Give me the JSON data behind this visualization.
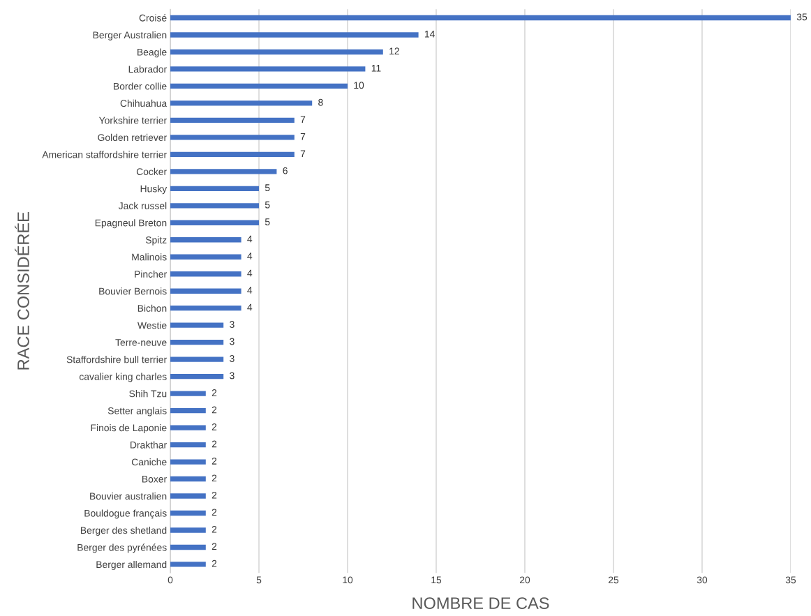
{
  "chart_data": {
    "type": "bar",
    "orientation": "horizontal",
    "xlabel": "NOMBRE DE CAS",
    "ylabel": "RACE CONSIDÉRÉE",
    "categories": [
      "Croisé",
      "Berger Australien",
      "Beagle",
      "Labrador",
      "Border collie",
      "Chihuahua",
      "Yorkshire terrier",
      "Golden retriever",
      "American staffordshire terrier",
      "Cocker",
      "Husky",
      "Jack russel",
      "Epagneul Breton",
      "Spitz",
      "Malinois",
      "Pincher",
      "Bouvier Bernois",
      "Bichon",
      "Westie",
      "Terre-neuve",
      "Staffordshire bull terrier",
      "cavalier king charles",
      "Shih Tzu",
      "Setter anglais",
      "Finois de Laponie",
      "Drakthar",
      "Caniche",
      "Boxer",
      "Bouvier australien",
      "Bouldogue français",
      "Berger des shetland",
      "Berger des pyrénées",
      "Berger allemand"
    ],
    "values": [
      35,
      14,
      12,
      11,
      10,
      8,
      7,
      7,
      7,
      6,
      5,
      5,
      5,
      4,
      4,
      4,
      4,
      4,
      3,
      3,
      3,
      3,
      2,
      2,
      2,
      2,
      2,
      2,
      2,
      2,
      2,
      2,
      2
    ],
    "color": "#4472c4",
    "xlim": [
      0,
      35
    ],
    "xticks": [
      0,
      5,
      10,
      15,
      20,
      25,
      30,
      35
    ],
    "grid": "x",
    "data_labels": true,
    "legend": false
  }
}
